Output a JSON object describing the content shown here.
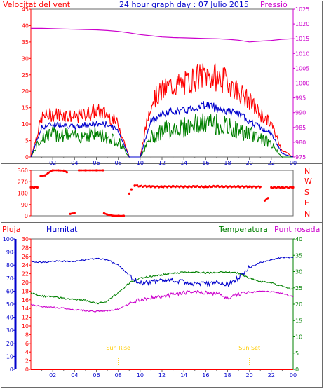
{
  "header": {
    "title": "24 hour graph day : 07 Julio 2015",
    "left_label": "Velocitat del vent",
    "right_label": "Pressió"
  },
  "dir_labels": [
    "N",
    "W",
    "S",
    "E",
    "N"
  ],
  "bottom_header": {
    "pluja": "Pluja",
    "humitat": "Humitat",
    "temperatura": "Temperatura",
    "punt_rosada": "Punt rosada"
  },
  "markers": {
    "sunrise": "Sun Rise",
    "sunset": "Sun Set"
  },
  "colors": {
    "gust": "#ff0000",
    "average": "#0000cc",
    "min": "#008000",
    "pressure": "#cc00cc",
    "direction": "#ff0000",
    "humidity": "#0000cc",
    "temperature": "#008000",
    "dewpoint": "#cc00cc",
    "rain": "#ff0000",
    "sun": "#ffcc00"
  },
  "chart_data": [
    {
      "type": "line",
      "name": "wind_pressure",
      "x_ticks": [
        "02",
        "04",
        "06",
        "08",
        "10",
        "12",
        "14",
        "16",
        "18",
        "20",
        "22",
        "00"
      ],
      "x_hours": [
        0,
        1,
        2,
        3,
        4,
        5,
        6,
        7,
        8,
        9,
        10,
        11,
        12,
        13,
        14,
        15,
        16,
        17,
        18,
        19,
        20,
        21,
        22,
        23,
        24
      ],
      "ylim_left": [
        0,
        45
      ],
      "ylim_right": [
        975,
        1025
      ],
      "left_ticks": [
        0,
        5,
        10,
        15,
        20,
        25,
        30,
        35,
        40,
        45
      ],
      "right_ticks": [
        975,
        980,
        985,
        990,
        995,
        1000,
        1005,
        1010,
        1015,
        1020,
        1025
      ],
      "series": [
        {
          "values": [
            0,
            12,
            13,
            13,
            12,
            13,
            14,
            13,
            10,
            0,
            0,
            17,
            20,
            22,
            22,
            24,
            25,
            24,
            23,
            20,
            17,
            13,
            10,
            2,
            0
          ]
        },
        {
          "values": [
            0,
            9,
            10,
            10,
            9,
            10,
            10,
            10,
            8,
            0,
            0,
            11,
            13,
            14,
            14,
            15,
            16,
            15,
            14,
            13,
            11,
            9,
            7,
            1,
            0
          ]
        },
        {
          "values": [
            0,
            6,
            7,
            7,
            6,
            7,
            7,
            6,
            5,
            0,
            0,
            6,
            8,
            9,
            9,
            10,
            10,
            10,
            9,
            8,
            7,
            6,
            4,
            0,
            0
          ]
        },
        {
          "values": [
            1018.5,
            1018.5,
            1018.4,
            1018.3,
            1018.2,
            1018.1,
            1018.0,
            1017.8,
            1017.5,
            1017.0,
            1016.4,
            1016.0,
            1015.6,
            1015.4,
            1015.3,
            1015.2,
            1015.1,
            1015.0,
            1014.8,
            1014.5,
            1013.9,
            1014.2,
            1014.4,
            1014.8,
            1015.0
          ]
        }
      ]
    },
    {
      "type": "scatter",
      "name": "wind_direction",
      "x_ticks": [
        "02",
        "04",
        "06",
        "08",
        "10",
        "12",
        "14",
        "16",
        "18",
        "20",
        "22",
        "00"
      ],
      "ylim": [
        0,
        360
      ],
      "y_ticks": [
        0,
        45,
        90,
        135,
        180,
        225,
        270,
        315,
        360
      ],
      "points": [
        [
          0.0,
          225
        ],
        [
          0.3,
          225
        ],
        [
          0.6,
          225
        ],
        [
          0.9,
          315
        ],
        [
          1.3,
          320
        ],
        [
          1.6,
          340
        ],
        [
          2.0,
          360
        ],
        [
          2.5,
          360
        ],
        [
          3.0,
          358
        ],
        [
          3.3,
          345
        ],
        [
          3.6,
          15
        ],
        [
          4.0,
          22
        ],
        [
          4.4,
          360
        ],
        [
          5.0,
          360
        ],
        [
          6.0,
          360
        ],
        [
          6.6,
          360
        ],
        [
          6.7,
          20
        ],
        [
          7.0,
          10
        ],
        [
          7.6,
          0
        ],
        [
          8.0,
          0
        ],
        [
          8.5,
          0
        ],
        [
          9.0,
          175
        ],
        [
          9.2,
          210
        ],
        [
          9.5,
          240
        ],
        [
          10.0,
          235
        ],
        [
          11.0,
          232
        ],
        [
          12.0,
          230
        ],
        [
          13.0,
          233
        ],
        [
          14.0,
          230
        ],
        [
          15.0,
          232
        ],
        [
          16.0,
          230
        ],
        [
          17.0,
          233
        ],
        [
          18.0,
          230
        ],
        [
          19.0,
          232
        ],
        [
          20.0,
          230
        ],
        [
          21.0,
          230
        ],
        [
          21.4,
          120
        ],
        [
          21.7,
          140
        ],
        [
          22.0,
          225
        ],
        [
          23.0,
          225
        ],
        [
          24.0,
          225
        ]
      ]
    },
    {
      "type": "line",
      "name": "humidity_temp_dew_rain",
      "x_ticks": [
        "02",
        "04",
        "06",
        "08",
        "10",
        "12",
        "14",
        "16",
        "18",
        "20",
        "22",
        "00"
      ],
      "x_hours": [
        0,
        1,
        2,
        3,
        4,
        5,
        6,
        7,
        8,
        9,
        10,
        11,
        12,
        13,
        14,
        15,
        16,
        17,
        18,
        19,
        20,
        21,
        22,
        23,
        24
      ],
      "ylim_humidity": [
        0,
        100
      ],
      "ylim_rain": [
        0,
        30
      ],
      "ylim_temp": [
        0,
        40
      ],
      "humidity_ticks": [
        0,
        10,
        20,
        30,
        40,
        50,
        60,
        70,
        80,
        90,
        100
      ],
      "rain_ticks": [
        0,
        2,
        4,
        6,
        8,
        10,
        12,
        14,
        16,
        18,
        20,
        22,
        24,
        26,
        28,
        30
      ],
      "temp_ticks": [
        0,
        5,
        10,
        15,
        20,
        25,
        30,
        35,
        40
      ],
      "series": [
        {
          "name": "Humitat",
          "values": [
            83,
            82,
            83,
            83,
            83,
            84,
            85,
            84,
            80,
            72,
            66,
            67,
            68,
            68,
            67,
            66,
            66,
            67,
            65,
            70,
            78,
            82,
            84,
            86,
            86
          ]
        },
        {
          "name": "Temperatura",
          "values": [
            23.5,
            22.5,
            22.2,
            21.8,
            21.5,
            21.2,
            20.2,
            21.0,
            23.5,
            26.5,
            28.0,
            28.5,
            29.0,
            29.5,
            29.8,
            29.8,
            29.6,
            29.7,
            29.8,
            29.5,
            28.0,
            27.0,
            26.5,
            25.5,
            24.5
          ]
        },
        {
          "name": "Punt rosada",
          "values": [
            19.8,
            19.3,
            19.0,
            18.8,
            18.3,
            18.0,
            17.8,
            18.0,
            18.5,
            20.0,
            21.5,
            22.0,
            22.3,
            23.0,
            23.5,
            23.8,
            23.5,
            23.2,
            22.0,
            23.0,
            23.5,
            24.0,
            23.8,
            23.3,
            22.3
          ]
        },
        {
          "name": "Pluja",
          "values": [
            0,
            0,
            0,
            0,
            0,
            0,
            0,
            0,
            0,
            0,
            0,
            0,
            0,
            0,
            0,
            0,
            0,
            0,
            0,
            0,
            0,
            0,
            0,
            0,
            0
          ]
        }
      ],
      "sunrise_hour": 8.0,
      "sunset_hour": 20.0
    }
  ]
}
